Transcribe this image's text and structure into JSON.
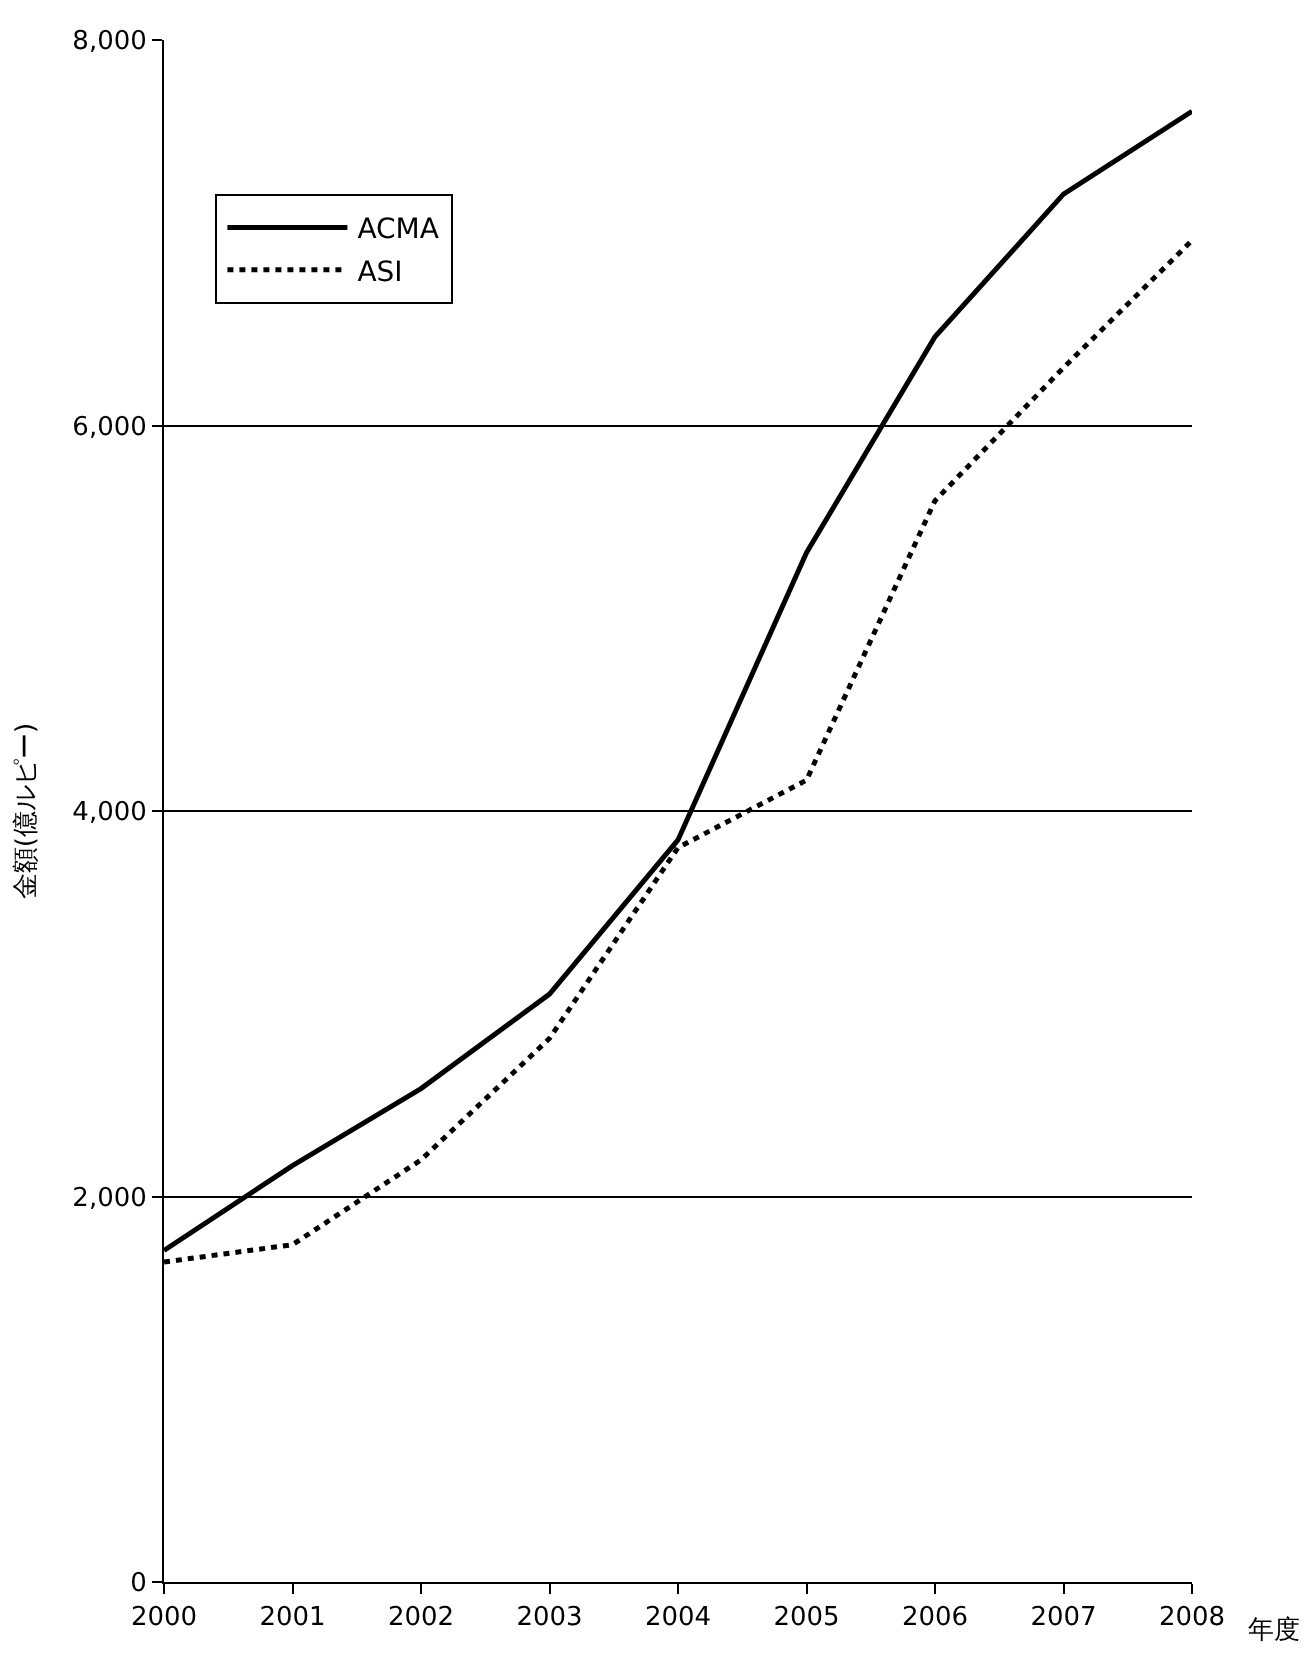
{
  "chart_data": {
    "type": "line",
    "xlabel": "年度",
    "ylabel": "金額(億ルピー)",
    "x": [
      2000,
      2001,
      2002,
      2003,
      2004,
      2005,
      2006,
      2007,
      2008
    ],
    "xlim": [
      2000,
      2008
    ],
    "xticks": [
      2000,
      2001,
      2002,
      2003,
      2004,
      2005,
      2006,
      2007,
      2008
    ],
    "ylim": [
      0,
      8000
    ],
    "yticks": [
      {
        "value": 0,
        "label": "0"
      },
      {
        "value": 2000,
        "label": "2,000"
      },
      {
        "value": 4000,
        "label": "4,000"
      },
      {
        "value": 6000,
        "label": "6,000"
      },
      {
        "value": 8000,
        "label": "8,000"
      }
    ],
    "grid": "y",
    "legend": "top left",
    "marker": "none",
    "series": [
      {
        "name": "ACMA",
        "color": "#000000",
        "line_style": "solid",
        "values": [
          1720,
          2160,
          2560,
          3050,
          3850,
          5340,
          6460,
          7200,
          7630
        ]
      },
      {
        "name": "ASI",
        "color": "#000000",
        "line_style": "dotted",
        "values": [
          1660,
          1750,
          2190,
          2820,
          3810,
          4160,
          5610,
          6300,
          6960
        ]
      }
    ]
  }
}
